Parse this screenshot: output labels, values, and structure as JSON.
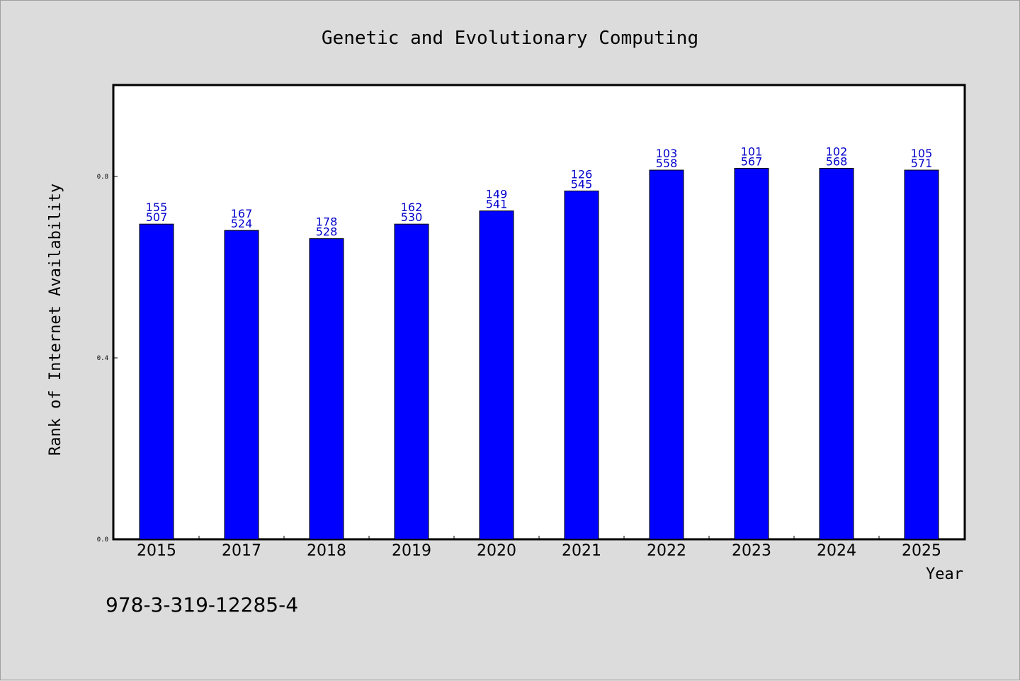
{
  "chart_data": {
    "type": "bar",
    "title": "Genetic and Evolutionary Computing",
    "xlabel": "Year",
    "ylabel": "Rank of Internet Availability",
    "categories": [
      "2015",
      "2017",
      "2018",
      "2019",
      "2020",
      "2021",
      "2022",
      "2023",
      "2024",
      "2025"
    ],
    "values": [
      0.695,
      0.681,
      0.663,
      0.695,
      0.724,
      0.768,
      0.814,
      0.818,
      0.818,
      0.814
    ],
    "annotations": [
      [
        "155",
        "507"
      ],
      [
        "167",
        "524"
      ],
      [
        "178",
        "528"
      ],
      [
        "162",
        "530"
      ],
      [
        "149",
        "541"
      ],
      [
        "126",
        "545"
      ],
      [
        "103",
        "558"
      ],
      [
        "101",
        "567"
      ],
      [
        "102",
        "568"
      ],
      [
        "105",
        "571"
      ]
    ],
    "ylim": [
      0,
      1.0
    ],
    "yticks": [
      "0.0",
      "0.4",
      "0.8"
    ],
    "ytick_values": [
      0.0,
      0.4,
      0.8
    ],
    "grid": false,
    "bar_color": "#0000ff",
    "label_color": "#0000cc"
  },
  "footer": {
    "isbn": "978-3-319-12285-4"
  }
}
